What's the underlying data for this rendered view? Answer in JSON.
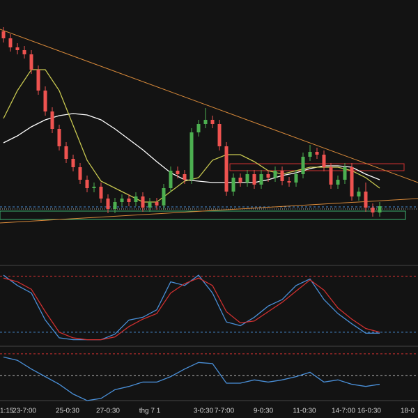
{
  "chart_data": {
    "type": "candlestick",
    "up_color": "#4caf50",
    "down_color": "#ef5350",
    "ylim": [
      0,
      380
    ],
    "candles": [
      [
        335,
        341,
        319,
        325
      ],
      [
        325,
        331,
        306,
        312
      ],
      [
        312,
        318,
        302,
        308
      ],
      [
        308,
        314,
        296,
        302
      ],
      [
        302,
        308,
        274,
        280
      ],
      [
        280,
        286,
        244,
        250
      ],
      [
        250,
        256,
        214,
        220
      ],
      [
        220,
        226,
        189,
        195
      ],
      [
        195,
        201,
        164,
        170
      ],
      [
        170,
        176,
        146,
        152
      ],
      [
        152,
        158,
        134,
        140
      ],
      [
        140,
        146,
        116,
        122
      ],
      [
        122,
        128,
        104,
        110
      ],
      [
        110,
        118,
        104,
        112
      ],
      [
        112,
        118,
        89,
        95
      ],
      [
        95,
        101,
        74,
        80
      ],
      [
        80,
        96,
        74,
        90
      ],
      [
        90,
        101,
        84,
        95
      ],
      [
        95,
        101,
        84,
        90
      ],
      [
        90,
        104,
        84,
        98
      ],
      [
        98,
        104,
        76,
        82
      ],
      [
        82,
        96,
        76,
        90
      ],
      [
        90,
        96,
        79,
        85
      ],
      [
        85,
        116,
        79,
        110
      ],
      [
        110,
        141,
        104,
        135
      ],
      [
        135,
        141,
        124,
        130
      ],
      [
        130,
        136,
        116,
        122
      ],
      [
        122,
        196,
        116,
        190
      ],
      [
        190,
        208,
        184,
        202
      ],
      [
        202,
        225,
        196,
        208
      ],
      [
        208,
        214,
        196,
        202
      ],
      [
        202,
        208,
        164,
        170
      ],
      [
        170,
        176,
        99,
        105
      ],
      [
        105,
        131,
        99,
        125
      ],
      [
        125,
        131,
        112,
        118
      ],
      [
        118,
        136,
        112,
        130
      ],
      [
        130,
        136,
        109,
        115
      ],
      [
        115,
        136,
        109,
        130
      ],
      [
        130,
        136,
        119,
        125
      ],
      [
        125,
        141,
        119,
        135
      ],
      [
        135,
        141,
        114,
        120
      ],
      [
        120,
        126,
        112,
        118
      ],
      [
        118,
        136,
        112,
        130
      ],
      [
        130,
        161,
        124,
        155
      ],
      [
        155,
        172,
        149,
        162
      ],
      [
        162,
        168,
        152,
        158
      ],
      [
        158,
        164,
        134,
        140
      ],
      [
        140,
        146,
        109,
        115
      ],
      [
        115,
        128,
        109,
        122
      ],
      [
        122,
        146,
        116,
        140
      ],
      [
        140,
        146,
        92,
        98
      ],
      [
        98,
        111,
        92,
        105
      ],
      [
        105,
        118,
        76,
        82
      ],
      [
        82,
        88,
        69,
        75
      ],
      [
        75,
        90,
        69,
        84
      ]
    ],
    "series": [
      {
        "name": "MA slow",
        "color": "#ffffff",
        "values": [
          175,
          185,
          198,
          208,
          214,
          217,
          215,
          208,
          195,
          180,
          165,
          148,
          132,
          122,
          120,
          118,
          118,
          118,
          118,
          122,
          128,
          132,
          138,
          142,
          142,
          140,
          130,
          122
        ]
      },
      {
        "name": "MA fast",
        "color": "#c8c850",
        "values": [
          210,
          250,
          280,
          280,
          250,
          200,
          150,
          120,
          110,
          100,
          90,
          90,
          105,
          120,
          125,
          150,
          158,
          158,
          148,
          135,
          130,
          135,
          140,
          140,
          140,
          135,
          125,
          110
        ]
      }
    ],
    "stochastic": {
      "ylim": [
        5,
        90
      ],
      "levels": [
        80,
        20
      ],
      "series": [
        {
          "name": "K",
          "color": "#4a90d9",
          "values": [
            81,
            70,
            62,
            33,
            14,
            12,
            12,
            12,
            18,
            33,
            36,
            44,
            74,
            70,
            81,
            62,
            31,
            27,
            36,
            48,
            55,
            70,
            77,
            55,
            40,
            29,
            19,
            19
          ]
        },
        {
          "name": "D",
          "color": "#d03030",
          "values": [
            78,
            74,
            66,
            42,
            20,
            14,
            12,
            12,
            15,
            26,
            34,
            40,
            62,
            72,
            78,
            70,
            42,
            30,
            32,
            42,
            52,
            64,
            76,
            65,
            46,
            34,
            24,
            20
          ]
        }
      ]
    },
    "rsi": {
      "ylim": [
        27,
        75
      ],
      "levels": [
        70,
        50
      ],
      "color": "#4a90d9",
      "values": [
        67,
        64,
        56,
        49,
        42,
        33,
        27,
        29,
        37,
        40,
        44,
        44,
        49,
        56,
        62,
        61,
        43,
        43,
        46,
        44,
        46,
        49,
        53,
        44,
        46,
        42,
        40,
        42
      ]
    },
    "x_labels": [
      "1:15",
      "23-7:00",
      "25-0:30",
      "27-0:30",
      "thg 7 1",
      "3-0:30",
      "7-7:00",
      "9-0:30",
      "11-0:30",
      "14-7:00",
      "16-0:30",
      "18-0"
    ]
  }
}
